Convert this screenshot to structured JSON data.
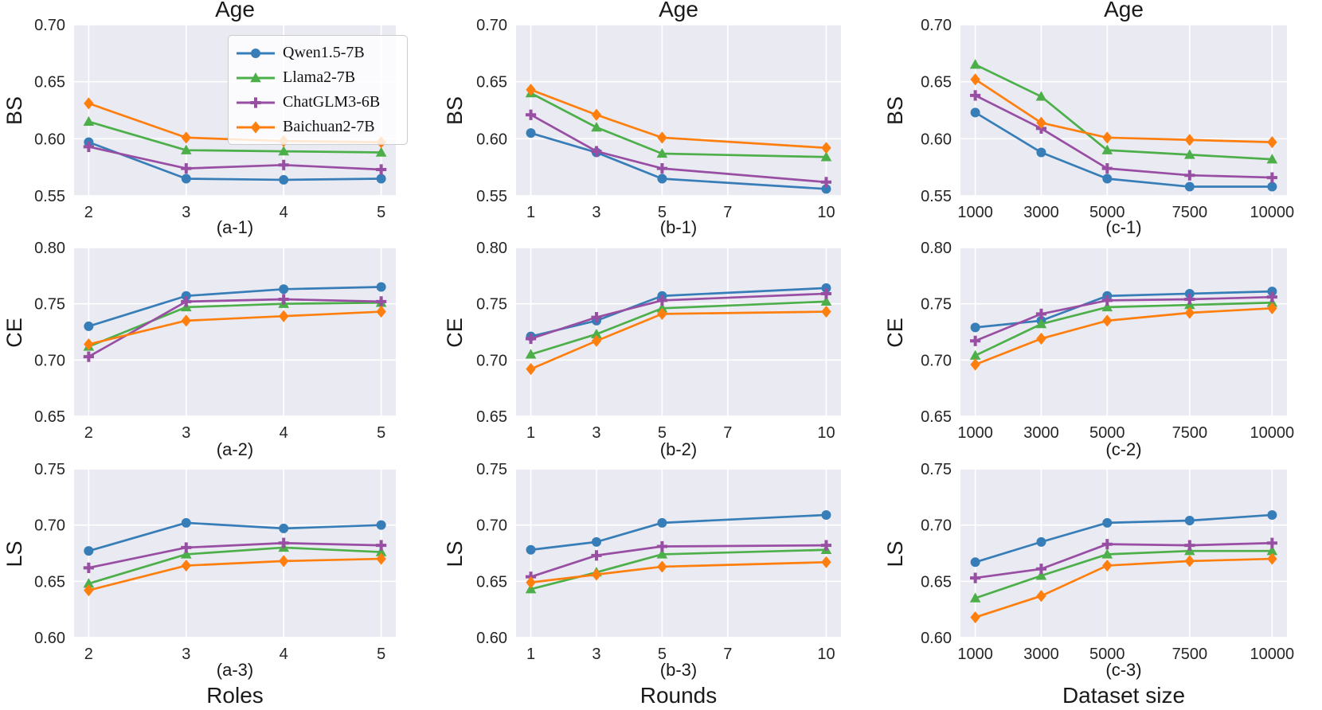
{
  "style": {
    "axes_background": "#eaeaf2",
    "grid_color": "#ffffff",
    "text_color": "#262626"
  },
  "legend": {
    "position": "upper-right of subplot (a-1)",
    "entries": [
      {
        "label": "Qwen1.5-7B",
        "color": "#377eb8",
        "marker": "circle"
      },
      {
        "label": "Llama2-7B",
        "color": "#4daf4a",
        "marker": "triangle"
      },
      {
        "label": "ChatGLM3-6B",
        "color": "#984ea3",
        "marker": "plus"
      },
      {
        "label": "Baichuan2-7B",
        "color": "#ff7f0e",
        "marker": "diamond"
      }
    ]
  },
  "chart_data": [
    {
      "id": "a-1",
      "type": "line",
      "title": "Age",
      "caption": "(a-1)",
      "ylabel": "BS",
      "xlabel": "",
      "x": [
        2,
        3,
        4,
        5
      ],
      "xticks": [
        2,
        3,
        4,
        5
      ],
      "ylim": [
        0.55,
        0.7
      ],
      "yticks": [
        0.55,
        0.6,
        0.65,
        0.7
      ],
      "series": [
        {
          "name": "Qwen1.5-7B",
          "values": [
            0.597,
            0.565,
            0.564,
            0.565
          ]
        },
        {
          "name": "Llama2-7B",
          "values": [
            0.615,
            0.59,
            0.589,
            0.588
          ]
        },
        {
          "name": "ChatGLM3-6B",
          "values": [
            0.593,
            0.574,
            0.577,
            0.573
          ]
        },
        {
          "name": "Baichuan2-7B",
          "values": [
            0.631,
            0.601,
            0.598,
            0.597
          ]
        }
      ]
    },
    {
      "id": "b-1",
      "type": "line",
      "title": "Age",
      "caption": "(b-1)",
      "ylabel": "BS",
      "xlabel": "",
      "x": [
        1,
        3,
        5,
        10
      ],
      "xticks": [
        1,
        3,
        5,
        7,
        10
      ],
      "ylim": [
        0.55,
        0.7
      ],
      "yticks": [
        0.55,
        0.6,
        0.65,
        0.7
      ],
      "series": [
        {
          "name": "Qwen1.5-7B",
          "values": [
            0.605,
            0.588,
            0.565,
            0.556
          ]
        },
        {
          "name": "Llama2-7B",
          "values": [
            0.64,
            0.61,
            0.587,
            0.584
          ]
        },
        {
          "name": "ChatGLM3-6B",
          "values": [
            0.621,
            0.589,
            0.574,
            0.562
          ]
        },
        {
          "name": "Baichuan2-7B",
          "values": [
            0.643,
            0.621,
            0.601,
            0.592
          ]
        }
      ]
    },
    {
      "id": "c-1",
      "type": "line",
      "title": "Age",
      "caption": "(c-1)",
      "ylabel": "BS",
      "xlabel": "",
      "x": [
        1000,
        3000,
        5000,
        7500,
        10000
      ],
      "xticks": [
        1000,
        3000,
        5000,
        7500,
        10000
      ],
      "ylim": [
        0.55,
        0.7
      ],
      "yticks": [
        0.55,
        0.6,
        0.65,
        0.7
      ],
      "series": [
        {
          "name": "Qwen1.5-7B",
          "values": [
            0.623,
            0.588,
            0.565,
            0.558,
            0.558
          ]
        },
        {
          "name": "Llama2-7B",
          "values": [
            0.665,
            0.637,
            0.59,
            0.586,
            0.582
          ]
        },
        {
          "name": "ChatGLM3-6B",
          "values": [
            0.638,
            0.609,
            0.574,
            0.568,
            0.566
          ]
        },
        {
          "name": "Baichuan2-7B",
          "values": [
            0.652,
            0.614,
            0.601,
            0.599,
            0.597
          ]
        }
      ]
    },
    {
      "id": "a-2",
      "type": "line",
      "title": "",
      "caption": "(a-2)",
      "ylabel": "CE",
      "xlabel": "",
      "x": [
        2,
        3,
        4,
        5
      ],
      "xticks": [
        2,
        3,
        4,
        5
      ],
      "ylim": [
        0.65,
        0.8
      ],
      "yticks": [
        0.65,
        0.7,
        0.75,
        0.8
      ],
      "series": [
        {
          "name": "Qwen1.5-7B",
          "values": [
            0.73,
            0.757,
            0.763,
            0.765
          ]
        },
        {
          "name": "Llama2-7B",
          "values": [
            0.712,
            0.747,
            0.75,
            0.751
          ]
        },
        {
          "name": "ChatGLM3-6B",
          "values": [
            0.703,
            0.752,
            0.754,
            0.752
          ]
        },
        {
          "name": "Baichuan2-7B",
          "values": [
            0.714,
            0.735,
            0.739,
            0.743
          ]
        }
      ]
    },
    {
      "id": "b-2",
      "type": "line",
      "title": "",
      "caption": "(b-2)",
      "ylabel": "CE",
      "xlabel": "",
      "x": [
        1,
        3,
        5,
        10
      ],
      "xticks": [
        1,
        3,
        5,
        7,
        10
      ],
      "ylim": [
        0.65,
        0.8
      ],
      "yticks": [
        0.65,
        0.7,
        0.75,
        0.8
      ],
      "series": [
        {
          "name": "Qwen1.5-7B",
          "values": [
            0.721,
            0.735,
            0.757,
            0.764
          ]
        },
        {
          "name": "Llama2-7B",
          "values": [
            0.705,
            0.723,
            0.746,
            0.752
          ]
        },
        {
          "name": "ChatGLM3-6B",
          "values": [
            0.719,
            0.738,
            0.753,
            0.759
          ]
        },
        {
          "name": "Baichuan2-7B",
          "values": [
            0.692,
            0.717,
            0.741,
            0.743
          ]
        }
      ]
    },
    {
      "id": "c-2",
      "type": "line",
      "title": "",
      "caption": "(c-2)",
      "ylabel": "CE",
      "xlabel": "",
      "x": [
        1000,
        3000,
        5000,
        7500,
        10000
      ],
      "xticks": [
        1000,
        3000,
        5000,
        7500,
        10000
      ],
      "ylim": [
        0.65,
        0.8
      ],
      "yticks": [
        0.65,
        0.7,
        0.75,
        0.8
      ],
      "series": [
        {
          "name": "Qwen1.5-7B",
          "values": [
            0.729,
            0.735,
            0.757,
            0.759,
            0.761
          ]
        },
        {
          "name": "Llama2-7B",
          "values": [
            0.704,
            0.732,
            0.747,
            0.749,
            0.751
          ]
        },
        {
          "name": "ChatGLM3-6B",
          "values": [
            0.717,
            0.741,
            0.753,
            0.754,
            0.756
          ]
        },
        {
          "name": "Baichuan2-7B",
          "values": [
            0.696,
            0.719,
            0.735,
            0.742,
            0.746
          ]
        }
      ]
    },
    {
      "id": "a-3",
      "type": "line",
      "title": "",
      "caption": "(a-3)",
      "ylabel": "LS",
      "xlabel": "Roles",
      "x": [
        2,
        3,
        4,
        5
      ],
      "xticks": [
        2,
        3,
        4,
        5
      ],
      "ylim": [
        0.6,
        0.75
      ],
      "yticks": [
        0.6,
        0.65,
        0.7,
        0.75
      ],
      "series": [
        {
          "name": "Qwen1.5-7B",
          "values": [
            0.677,
            0.702,
            0.697,
            0.7
          ]
        },
        {
          "name": "Llama2-7B",
          "values": [
            0.648,
            0.674,
            0.68,
            0.676
          ]
        },
        {
          "name": "ChatGLM3-6B",
          "values": [
            0.662,
            0.68,
            0.684,
            0.682
          ]
        },
        {
          "name": "Baichuan2-7B",
          "values": [
            0.642,
            0.664,
            0.668,
            0.67
          ]
        }
      ]
    },
    {
      "id": "b-3",
      "type": "line",
      "title": "",
      "caption": "(b-3)",
      "ylabel": "LS",
      "xlabel": "Rounds",
      "x": [
        1,
        3,
        5,
        10
      ],
      "xticks": [
        1,
        3,
        5,
        7,
        10
      ],
      "ylim": [
        0.6,
        0.75
      ],
      "yticks": [
        0.6,
        0.65,
        0.7,
        0.75
      ],
      "series": [
        {
          "name": "Qwen1.5-7B",
          "values": [
            0.678,
            0.685,
            0.702,
            0.709
          ]
        },
        {
          "name": "Llama2-7B",
          "values": [
            0.643,
            0.658,
            0.674,
            0.678
          ]
        },
        {
          "name": "ChatGLM3-6B",
          "values": [
            0.654,
            0.673,
            0.681,
            0.682
          ]
        },
        {
          "name": "Baichuan2-7B",
          "values": [
            0.649,
            0.656,
            0.663,
            0.667
          ]
        }
      ]
    },
    {
      "id": "c-3",
      "type": "line",
      "title": "",
      "caption": "(c-3)",
      "ylabel": "LS",
      "xlabel": "Dataset size",
      "x": [
        1000,
        3000,
        5000,
        7500,
        10000
      ],
      "xticks": [
        1000,
        3000,
        5000,
        7500,
        10000
      ],
      "ylim": [
        0.6,
        0.75
      ],
      "yticks": [
        0.6,
        0.65,
        0.7,
        0.75
      ],
      "series": [
        {
          "name": "Qwen1.5-7B",
          "values": [
            0.667,
            0.685,
            0.702,
            0.704,
            0.709
          ]
        },
        {
          "name": "Llama2-7B",
          "values": [
            0.635,
            0.655,
            0.674,
            0.677,
            0.677
          ]
        },
        {
          "name": "ChatGLM3-6B",
          "values": [
            0.653,
            0.661,
            0.683,
            0.682,
            0.684
          ]
        },
        {
          "name": "Baichuan2-7B",
          "values": [
            0.618,
            0.637,
            0.664,
            0.668,
            0.67
          ]
        }
      ]
    }
  ]
}
